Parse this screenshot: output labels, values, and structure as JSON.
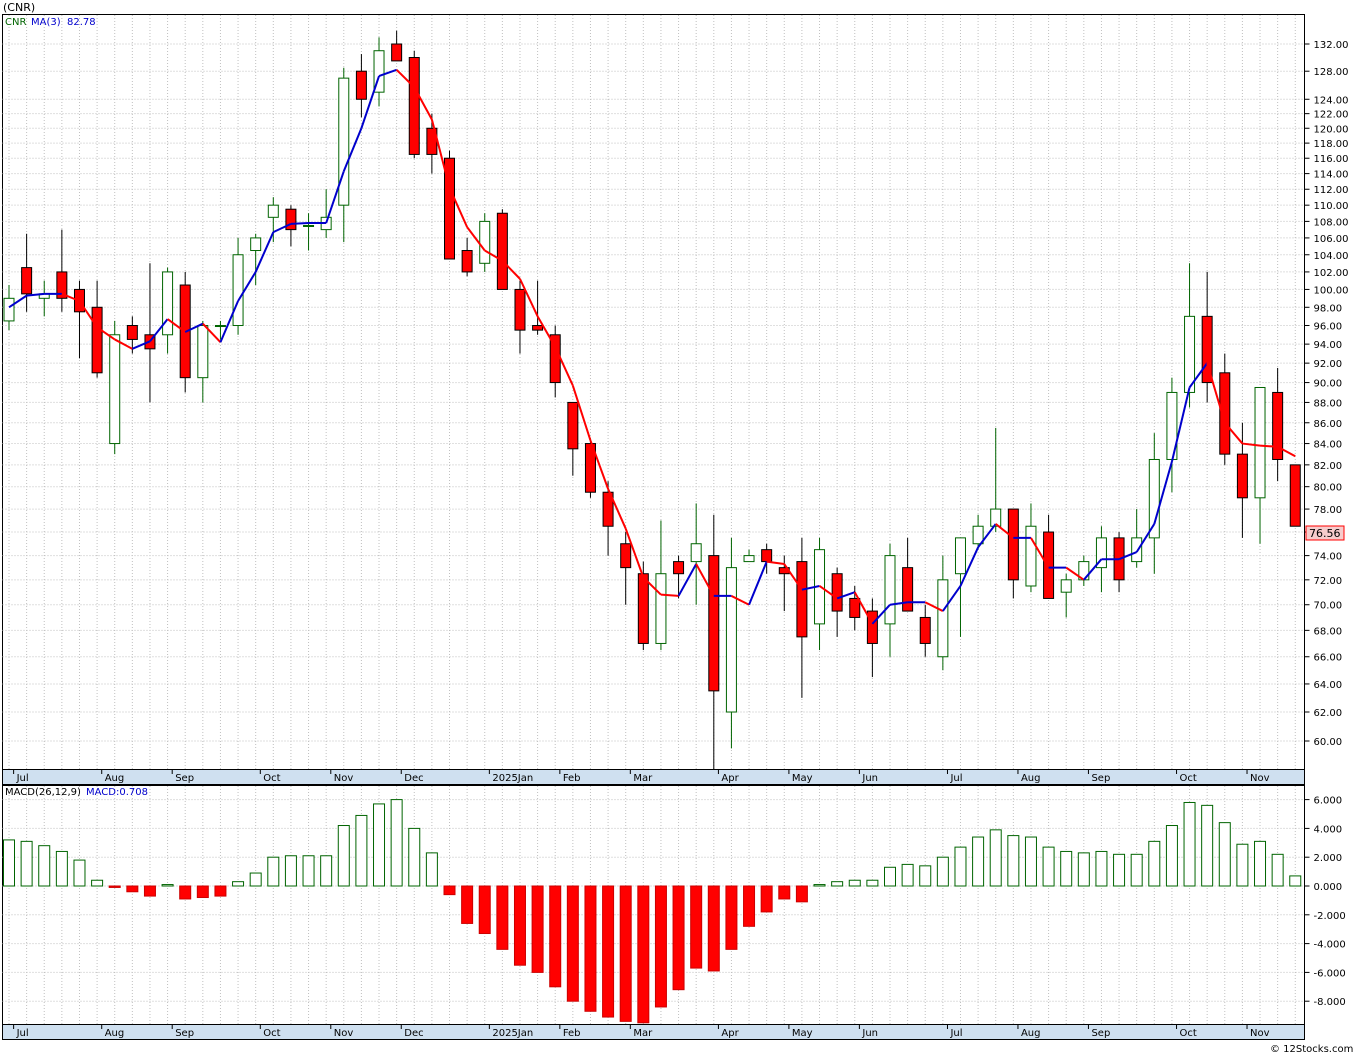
{
  "header": {
    "ticker_label": "(CNR)",
    "footer": "© 12Stocks.com"
  },
  "price_panel": {
    "legend_ticker": "CNR",
    "legend_ma": "MA(3)",
    "legend_ma_value": "82.78",
    "last_price_label": "76.56",
    "colors": {
      "up": "#ffffff",
      "up_outline": "#006400",
      "down": "#ff0000",
      "ma_up": "#0000cc",
      "ma_down": "#ff0000",
      "grid": "#c0c0c0"
    },
    "y_ticks": [
      "60.00",
      "62.00",
      "64.00",
      "66.00",
      "68.00",
      "70.00",
      "72.00",
      "74.00",
      "76.00",
      "78.00",
      "80.00",
      "82.00",
      "84.00",
      "86.00",
      "88.00",
      "90.00",
      "92.00",
      "94.00",
      "96.00",
      "98.00",
      "100.00",
      "102.00",
      "104.00",
      "106.00",
      "108.00",
      "110.00",
      "112.00",
      "114.00",
      "116.00",
      "118.00",
      "120.00",
      "122.00",
      "124.00",
      "128.00",
      "132.00"
    ]
  },
  "macd_panel": {
    "legend": "MACD(26,12,9)",
    "legend_value": "MACD:0.708",
    "y_ticks": [
      "6.000",
      "4.000",
      "2.000",
      "0.000",
      "-2.000",
      "-4.000",
      "-6.000",
      "-8.000"
    ]
  },
  "x_axis": {
    "labels": [
      "Jul",
      "Aug",
      "Sep",
      "Oct",
      "Nov",
      "Dec",
      "2025Jan",
      "Feb",
      "Mar",
      "Apr",
      "May",
      "Jun",
      "Jul",
      "Aug",
      "Sep",
      "Oct",
      "Nov"
    ],
    "label_index": [
      1,
      6,
      10,
      15,
      19,
      23,
      28,
      32,
      36,
      41,
      45,
      49,
      54,
      58,
      62,
      67,
      71
    ]
  },
  "chart_data": {
    "type": "candlestick",
    "ylim": [
      58,
      134
    ],
    "y_scale": "log",
    "macd_ylim": [
      -9.5,
      6.5
    ],
    "series": [
      {
        "name": "price",
        "values": [
          [
            96.5,
            100.5,
            95.5,
            99.0
          ],
          [
            102.5,
            106.5,
            97.5,
            99.5
          ],
          [
            99.0,
            101.0,
            97.0,
            99.5
          ],
          [
            102.0,
            107.0,
            97.5,
            99.0
          ],
          [
            100.0,
            101.0,
            92.5,
            97.5
          ],
          [
            98.0,
            101.0,
            90.5,
            91.0
          ],
          [
            84.0,
            96.5,
            83.0,
            95.0
          ],
          [
            96.0,
            97.0,
            93.0,
            94.5
          ],
          [
            95.0,
            103.0,
            88.0,
            93.5
          ],
          [
            95.0,
            102.5,
            93.0,
            102.0
          ],
          [
            100.5,
            102.0,
            89.0,
            90.5
          ],
          [
            90.5,
            96.5,
            88.0,
            96.0
          ],
          [
            96.0,
            96.5,
            94.5,
            96.0
          ],
          [
            96.0,
            106.0,
            95.0,
            104.0
          ],
          [
            104.5,
            106.5,
            100.5,
            106.0
          ],
          [
            108.5,
            111.0,
            105.5,
            110.0
          ],
          [
            109.5,
            110.0,
            105.0,
            107.0
          ],
          [
            107.5,
            109.0,
            104.5,
            107.5
          ],
          [
            107.0,
            112.0,
            106.0,
            108.5
          ],
          [
            110.0,
            128.5,
            105.5,
            127.0
          ],
          [
            128.0,
            130.5,
            121.5,
            124.0
          ],
          [
            125.0,
            133.0,
            123.0,
            131.0
          ],
          [
            132.0,
            134.0,
            129.5,
            129.5
          ],
          [
            130.0,
            131.0,
            116.0,
            116.5
          ],
          [
            120.0,
            122.0,
            114.0,
            116.5
          ],
          [
            116.0,
            117.0,
            103.5,
            103.5
          ],
          [
            104.5,
            106.0,
            101.5,
            102.0
          ],
          [
            103.0,
            109.0,
            102.0,
            108.0
          ],
          [
            109.0,
            109.5,
            100.0,
            100.0
          ],
          [
            100.0,
            101.0,
            93.0,
            95.5
          ],
          [
            96.0,
            101.0,
            95.0,
            95.5
          ],
          [
            95.0,
            96.0,
            88.5,
            90.0
          ],
          [
            88.0,
            88.0,
            81.0,
            83.5
          ],
          [
            84.0,
            84.5,
            79.0,
            79.5
          ],
          [
            79.5,
            80.5,
            74.0,
            76.5
          ],
          [
            75.0,
            76.0,
            70.0,
            73.0
          ],
          [
            72.5,
            73.5,
            66.5,
            67.0
          ],
          [
            67.0,
            77.0,
            66.5,
            72.5
          ],
          [
            73.5,
            74.0,
            70.5,
            72.5
          ],
          [
            73.5,
            78.5,
            70.0,
            75.0
          ],
          [
            74.0,
            77.5,
            58.0,
            63.5
          ],
          [
            62.0,
            75.5,
            59.5,
            73.0
          ],
          [
            73.5,
            74.5,
            73.5,
            74.0
          ],
          [
            74.5,
            75.0,
            72.5,
            73.5
          ],
          [
            73.0,
            74.0,
            69.5,
            72.5
          ],
          [
            73.5,
            75.5,
            63.0,
            67.5
          ],
          [
            68.5,
            75.5,
            66.5,
            74.5
          ],
          [
            72.5,
            73.0,
            67.5,
            69.5
          ],
          [
            70.5,
            71.5,
            68.0,
            69.0
          ],
          [
            69.5,
            70.5,
            64.5,
            67.0
          ],
          [
            68.5,
            75.0,
            66.0,
            74.0
          ],
          [
            73.0,
            75.5,
            69.5,
            69.5
          ],
          [
            69.0,
            70.0,
            66.0,
            67.0
          ],
          [
            66.0,
            74.0,
            65.0,
            72.0
          ],
          [
            72.5,
            75.5,
            67.5,
            75.5
          ],
          [
            75.0,
            77.5,
            74.5,
            76.5
          ],
          [
            76.5,
            85.5,
            76.0,
            78.0
          ],
          [
            78.0,
            78.0,
            70.5,
            72.0
          ],
          [
            71.5,
            78.5,
            71.0,
            76.5
          ],
          [
            76.0,
            77.5,
            70.5,
            70.5
          ],
          [
            71.0,
            72.5,
            69.0,
            72.0
          ],
          [
            72.0,
            74.0,
            71.5,
            73.5
          ],
          [
            73.0,
            76.5,
            71.0,
            75.5
          ],
          [
            75.5,
            76.0,
            71.0,
            72.0
          ],
          [
            73.5,
            78.0,
            73.0,
            75.5
          ],
          [
            75.5,
            85.0,
            72.5,
            82.5
          ],
          [
            82.5,
            90.5,
            79.5,
            89.0
          ],
          [
            89.0,
            103.0,
            87.5,
            97.0
          ],
          [
            97.0,
            102.0,
            88.0,
            90.0
          ],
          [
            91.0,
            93.0,
            82.0,
            83.0
          ],
          [
            83.0,
            86.0,
            75.5,
            79.0
          ],
          [
            79.0,
            89.5,
            75.0,
            89.5
          ],
          [
            89.0,
            91.5,
            80.5,
            82.5
          ],
          [
            82.0,
            82.0,
            76.5,
            76.5
          ]
        ]
      },
      {
        "name": "MA(3)",
        "values": [
          98.0,
          99.3,
          99.5,
          99.5,
          98.7,
          95.8,
          94.5,
          93.5,
          94.3,
          96.7,
          95.3,
          96.2,
          94.2,
          98.7,
          102.0,
          106.7,
          107.7,
          107.8,
          107.8,
          114.3,
          120.0,
          127.3,
          128.2,
          125.7,
          121.2,
          112.2,
          107.3,
          104.5,
          103.3,
          101.2,
          97.0,
          93.7,
          89.7,
          84.3,
          79.8,
          76.3,
          72.2,
          70.8,
          70.7,
          73.3,
          70.7,
          70.7,
          70.0,
          73.5,
          73.3,
          71.2,
          71.5,
          70.5,
          71.0,
          68.5,
          70.0,
          70.2,
          70.2,
          69.5,
          71.5,
          74.7,
          76.7,
          75.5,
          75.5,
          73.0,
          73.0,
          72.0,
          73.7,
          73.7,
          74.3,
          76.7,
          82.3,
          89.5,
          92.0,
          86.0,
          84.0,
          83.8,
          83.7,
          82.8
        ]
      },
      {
        "name": "MACD",
        "values": [
          3.2,
          3.1,
          2.8,
          2.4,
          1.8,
          0.4,
          -0.1,
          -0.4,
          -0.7,
          0.1,
          -0.9,
          -0.8,
          -0.7,
          0.3,
          0.9,
          2.0,
          2.1,
          2.1,
          2.1,
          4.2,
          4.9,
          5.7,
          6.0,
          4.0,
          2.3,
          -0.6,
          -2.6,
          -3.3,
          -4.4,
          -5.5,
          -6.0,
          -7.0,
          -8.0,
          -8.7,
          -9.1,
          -9.4,
          -9.5,
          -8.4,
          -7.2,
          -5.7,
          -5.9,
          -4.4,
          -2.8,
          -1.8,
          -0.9,
          -1.1,
          0.1,
          0.3,
          0.4,
          0.4,
          1.3,
          1.5,
          1.4,
          2.0,
          2.7,
          3.4,
          3.9,
          3.5,
          3.4,
          2.7,
          2.4,
          2.3,
          2.4,
          2.2,
          2.2,
          3.1,
          4.2,
          5.8,
          5.6,
          4.4,
          2.9,
          3.1,
          2.2,
          0.7
        ]
      }
    ]
  }
}
